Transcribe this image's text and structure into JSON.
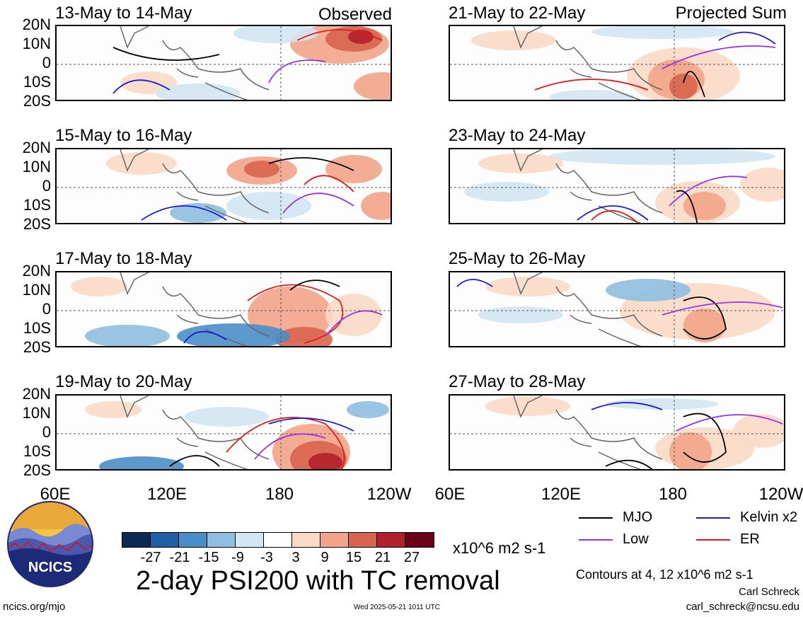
{
  "panels": [
    {
      "title": "13-May to 14-May",
      "tag": "Observed"
    },
    {
      "title": "15-May to 16-May",
      "tag": ""
    },
    {
      "title": "17-May to 18-May",
      "tag": ""
    },
    {
      "title": "19-May to 20-May",
      "tag": ""
    },
    {
      "title": "21-May to 22-May",
      "tag": "Projected Sum"
    },
    {
      "title": "23-May to 24-May",
      "tag": ""
    },
    {
      "title": "25-May to 26-May",
      "tag": ""
    },
    {
      "title": "27-May to 28-May",
      "tag": ""
    }
  ],
  "lat_labels": [
    "20N",
    "10N",
    "0",
    "10S",
    "20S"
  ],
  "lon_labels": [
    "60E",
    "120E",
    "180",
    "120W"
  ],
  "colorbar": {
    "colors": [
      "#0a2a55",
      "#1f5fa8",
      "#4a8ec8",
      "#8ebfe0",
      "#d2e6f3",
      "#ffffff",
      "#fbd9c6",
      "#f2a488",
      "#d9644e",
      "#b2202a",
      "#6a0018"
    ],
    "ticks": [
      "-27",
      "-21",
      "-15",
      "-9",
      "-3",
      "3",
      "9",
      "15",
      "21",
      "27"
    ],
    "units": "x10^6 m2 s-1"
  },
  "title": "2-day PSI200 with TC removal",
  "legend": [
    {
      "label": "MJO",
      "color": "#000000"
    },
    {
      "label": "Kelvin x2",
      "color": "#1a1ad6"
    },
    {
      "label": "Low",
      "color": "#9a33e0"
    },
    {
      "label": "ER",
      "color": "#e01a1a"
    }
  ],
  "contours_note": "Contours at 4, 12 x10^6 m2 s-1",
  "author": "Carl Schreck",
  "email": "carl_schreck@ncsu.edu",
  "website": "ncics.org/mjo",
  "timestamp": "Wed 2025-05-21 1011 UTC",
  "logo_text": "NCICS"
}
